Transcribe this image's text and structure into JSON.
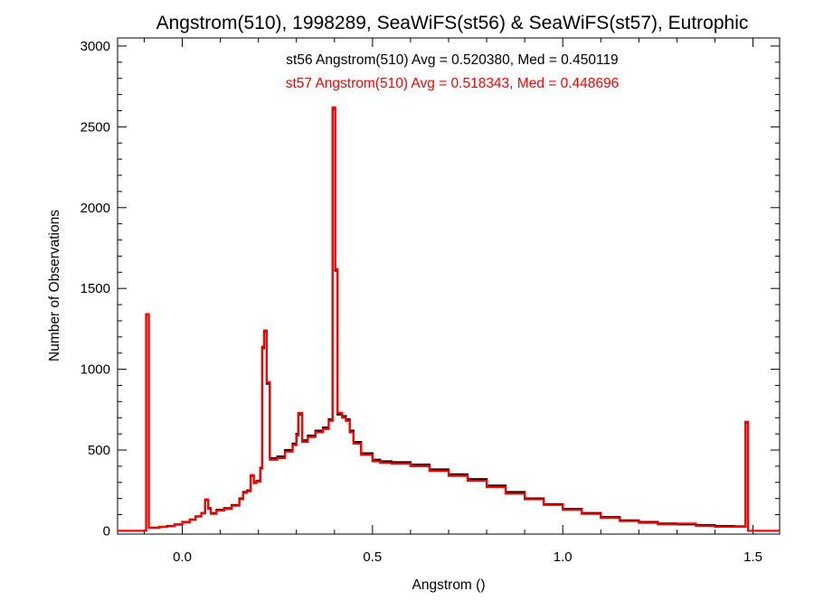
{
  "chart_data": {
    "type": "histogram-step",
    "title": "Angstrom(510), 1998289, SeaWiFS(st56) & SeaWiFS(st57), Eutrophic",
    "xlabel": "Angstrom ()",
    "ylabel": "Number of Observations",
    "xlim": [
      -0.17,
      1.57
    ],
    "ylim": [
      -20,
      3050
    ],
    "xticks": [
      0.0,
      0.5,
      1.0,
      1.5
    ],
    "xtick_labels": [
      "0.0",
      "0.5",
      "1.0",
      "1.5"
    ],
    "yticks": [
      0,
      500,
      1000,
      1500,
      2000,
      2500,
      3000
    ],
    "ytick_labels": [
      "0",
      "500",
      "1000",
      "1500",
      "2000",
      "2500",
      "3000"
    ],
    "grid": false,
    "legend_placement": "top-center",
    "series": [
      {
        "name": "st56",
        "color": "#000000",
        "stats_label": "st56 Angstrom(510) Avg = 0.520380, Med = 0.450119",
        "points": [
          [
            -0.17,
            0
          ],
          [
            -0.095,
            0
          ],
          [
            -0.095,
            1340
          ],
          [
            -0.088,
            1340
          ],
          [
            -0.088,
            20
          ],
          [
            -0.06,
            25
          ],
          [
            -0.04,
            30
          ],
          [
            -0.02,
            40
          ],
          [
            0.0,
            55
          ],
          [
            0.02,
            70
          ],
          [
            0.035,
            90
          ],
          [
            0.05,
            110
          ],
          [
            0.06,
            190
          ],
          [
            0.068,
            140
          ],
          [
            0.075,
            110
          ],
          [
            0.09,
            130
          ],
          [
            0.11,
            140
          ],
          [
            0.13,
            160
          ],
          [
            0.15,
            200
          ],
          [
            0.16,
            240
          ],
          [
            0.17,
            250
          ],
          [
            0.18,
            340
          ],
          [
            0.188,
            300
          ],
          [
            0.195,
            310
          ],
          [
            0.205,
            390
          ],
          [
            0.21,
            1130
          ],
          [
            0.215,
            1230
          ],
          [
            0.222,
            910
          ],
          [
            0.23,
            450
          ],
          [
            0.25,
            460
          ],
          [
            0.27,
            500
          ],
          [
            0.29,
            540
          ],
          [
            0.3,
            600
          ],
          [
            0.305,
            720
          ],
          [
            0.315,
            560
          ],
          [
            0.33,
            590
          ],
          [
            0.35,
            620
          ],
          [
            0.37,
            640
          ],
          [
            0.385,
            690
          ],
          [
            0.395,
            2610
          ],
          [
            0.402,
            1610
          ],
          [
            0.408,
            720
          ],
          [
            0.42,
            710
          ],
          [
            0.43,
            690
          ],
          [
            0.44,
            620
          ],
          [
            0.45,
            550
          ],
          [
            0.47,
            480
          ],
          [
            0.5,
            440
          ],
          [
            0.52,
            430
          ],
          [
            0.55,
            425
          ],
          [
            0.6,
            410
          ],
          [
            0.65,
            380
          ],
          [
            0.7,
            350
          ],
          [
            0.75,
            320
          ],
          [
            0.8,
            280
          ],
          [
            0.85,
            240
          ],
          [
            0.9,
            200
          ],
          [
            0.95,
            165
          ],
          [
            1.0,
            135
          ],
          [
            1.05,
            110
          ],
          [
            1.1,
            85
          ],
          [
            1.15,
            65
          ],
          [
            1.2,
            55
          ],
          [
            1.25,
            45
          ],
          [
            1.3,
            40
          ],
          [
            1.35,
            35
          ],
          [
            1.4,
            30
          ],
          [
            1.45,
            28
          ],
          [
            1.48,
            35
          ],
          [
            1.48,
            670
          ],
          [
            1.487,
            670
          ],
          [
            1.487,
            0
          ],
          [
            1.57,
            0
          ]
        ]
      },
      {
        "name": "st57",
        "color": "#ff0000",
        "stats_label": "st57 Angstrom(510) Avg = 0.518343, Med = 0.448696",
        "points": [
          [
            -0.17,
            0
          ],
          [
            -0.095,
            0
          ],
          [
            -0.095,
            1340
          ],
          [
            -0.088,
            1340
          ],
          [
            -0.088,
            18
          ],
          [
            -0.06,
            24
          ],
          [
            -0.04,
            28
          ],
          [
            -0.02,
            38
          ],
          [
            0.0,
            52
          ],
          [
            0.02,
            68
          ],
          [
            0.035,
            88
          ],
          [
            0.05,
            108
          ],
          [
            0.06,
            195
          ],
          [
            0.068,
            135
          ],
          [
            0.075,
            105
          ],
          [
            0.09,
            125
          ],
          [
            0.11,
            135
          ],
          [
            0.13,
            155
          ],
          [
            0.15,
            195
          ],
          [
            0.16,
            235
          ],
          [
            0.17,
            245
          ],
          [
            0.18,
            345
          ],
          [
            0.188,
            295
          ],
          [
            0.195,
            305
          ],
          [
            0.205,
            385
          ],
          [
            0.21,
            1140
          ],
          [
            0.215,
            1240
          ],
          [
            0.222,
            920
          ],
          [
            0.23,
            440
          ],
          [
            0.25,
            450
          ],
          [
            0.27,
            490
          ],
          [
            0.29,
            530
          ],
          [
            0.3,
            590
          ],
          [
            0.305,
            730
          ],
          [
            0.315,
            550
          ],
          [
            0.33,
            580
          ],
          [
            0.35,
            610
          ],
          [
            0.37,
            630
          ],
          [
            0.385,
            680
          ],
          [
            0.395,
            2620
          ],
          [
            0.402,
            1620
          ],
          [
            0.408,
            730
          ],
          [
            0.42,
            700
          ],
          [
            0.43,
            680
          ],
          [
            0.44,
            610
          ],
          [
            0.45,
            540
          ],
          [
            0.47,
            470
          ],
          [
            0.5,
            430
          ],
          [
            0.52,
            420
          ],
          [
            0.55,
            415
          ],
          [
            0.6,
            400
          ],
          [
            0.65,
            370
          ],
          [
            0.7,
            340
          ],
          [
            0.75,
            310
          ],
          [
            0.8,
            270
          ],
          [
            0.85,
            230
          ],
          [
            0.9,
            195
          ],
          [
            0.95,
            160
          ],
          [
            1.0,
            130
          ],
          [
            1.05,
            105
          ],
          [
            1.1,
            80
          ],
          [
            1.15,
            60
          ],
          [
            1.2,
            50
          ],
          [
            1.25,
            40
          ],
          [
            1.3,
            45
          ],
          [
            1.35,
            30
          ],
          [
            1.4,
            25
          ],
          [
            1.45,
            25
          ],
          [
            1.48,
            30
          ],
          [
            1.48,
            675
          ],
          [
            1.487,
            675
          ],
          [
            1.487,
            0
          ],
          [
            1.57,
            0
          ]
        ]
      }
    ]
  }
}
